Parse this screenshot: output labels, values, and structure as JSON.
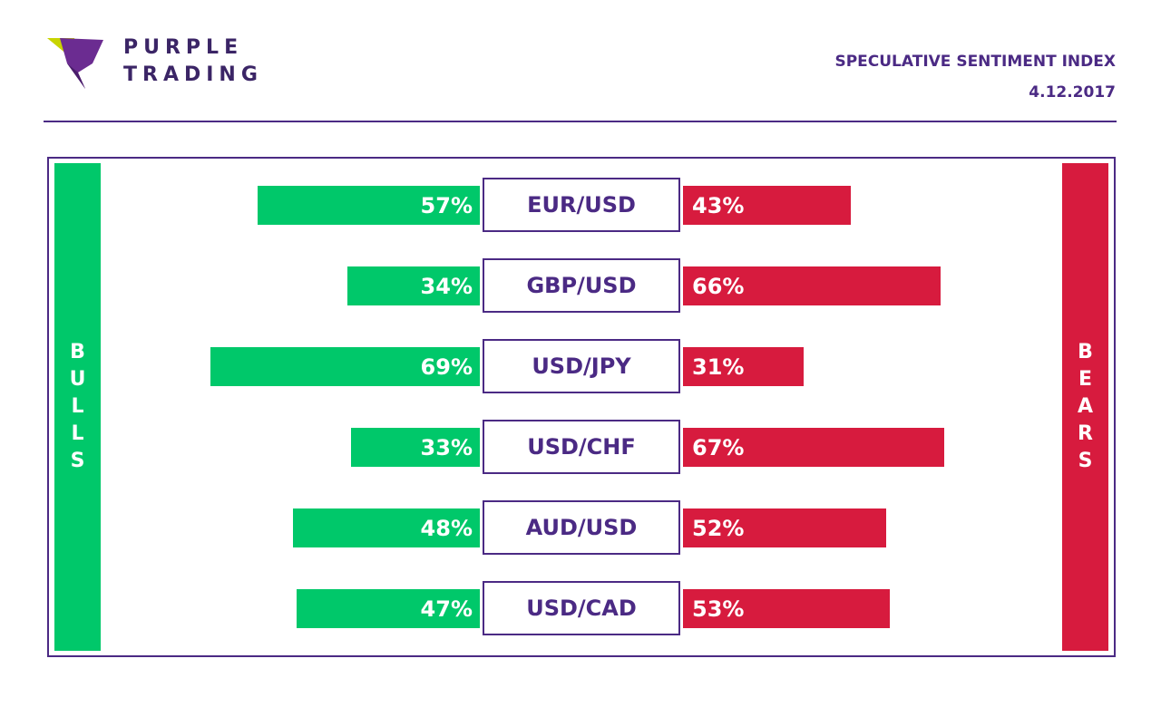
{
  "brand": {
    "line1": "PURPLE",
    "line2": "TRADING"
  },
  "header": {
    "title": "SPECULATIVE SENTIMENT INDEX",
    "date": "4.12.2017"
  },
  "labels": {
    "bulls": "BULLS",
    "bears": "BEARS"
  },
  "colors": {
    "bulls": "#00c86a",
    "bears": "#d71b3e",
    "accent": "#4b2a84"
  },
  "chart_data": {
    "type": "bar",
    "categories": [
      "EUR/USD",
      "GBP/USD",
      "USD/JPY",
      "USD/CHF",
      "AUD/USD",
      "USD/CAD"
    ],
    "series": [
      {
        "name": "BULLS",
        "values": [
          57,
          34,
          69,
          33,
          48,
          47
        ]
      },
      {
        "name": "BEARS",
        "values": [
          43,
          66,
          31,
          67,
          52,
          53
        ]
      }
    ],
    "value_labels": {
      "bulls": [
        "57%",
        "34%",
        "69%",
        "33%",
        "48%",
        "47%"
      ],
      "bears": [
        "43%",
        "66%",
        "31%",
        "67%",
        "52%",
        "53%"
      ]
    },
    "unit": "%",
    "title": "SPECULATIVE SENTIMENT INDEX",
    "xlabel": "",
    "ylabel": "",
    "ylim": [
      0,
      100
    ]
  }
}
